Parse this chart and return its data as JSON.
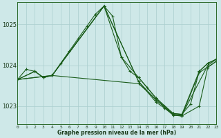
{
  "xlabel": "Graphe pression niveau de la mer (hPa)",
  "background_color": "#cee8e8",
  "grid_color": "#aacece",
  "line_color": "#1a5c1a",
  "ylim": [
    1022.55,
    1025.55
  ],
  "yticks": [
    1023,
    1024,
    1025
  ],
  "xlim": [
    0,
    23
  ],
  "xticks": [
    0,
    1,
    2,
    3,
    4,
    5,
    6,
    7,
    8,
    9,
    10,
    11,
    12,
    13,
    14,
    15,
    16,
    17,
    18,
    19,
    20,
    21,
    22,
    23
  ],
  "series": [
    {
      "x": [
        0,
        1,
        2,
        3,
        4,
        5,
        6,
        7,
        8,
        9,
        10,
        11,
        12,
        13,
        14,
        15,
        16,
        17,
        18,
        19,
        20,
        21,
        22,
        23
      ],
      "y": [
        1023.65,
        1023.9,
        1023.85,
        1023.7,
        1023.75,
        1024.05,
        1024.35,
        1024.65,
        1024.95,
        1025.25,
        1025.45,
        1025.2,
        1024.2,
        1023.85,
        1023.7,
        1023.45,
        1023.2,
        1023.0,
        1022.82,
        1022.8,
        1023.05,
        1023.85,
        1024.05,
        1024.15
      ]
    },
    {
      "x": [
        0,
        2,
        3,
        4,
        10,
        12,
        14,
        16,
        18,
        19,
        21,
        22,
        23
      ],
      "y": [
        1023.65,
        1023.85,
        1023.7,
        1023.75,
        1025.45,
        1024.2,
        1023.7,
        1023.2,
        1022.82,
        1022.8,
        1023.85,
        1024.05,
        1024.15
      ]
    },
    {
      "x": [
        0,
        2,
        3,
        4,
        10,
        14,
        16,
        18,
        19,
        22,
        23
      ],
      "y": [
        1023.65,
        1023.85,
        1023.7,
        1023.75,
        1025.45,
        1023.6,
        1023.15,
        1022.8,
        1022.78,
        1024.0,
        1024.15
      ]
    },
    {
      "x": [
        0,
        4,
        10,
        14,
        16,
        17,
        18,
        19,
        21,
        22,
        23
      ],
      "y": [
        1023.65,
        1023.75,
        1025.45,
        1023.6,
        1023.1,
        1022.95,
        1022.78,
        1022.76,
        1023.0,
        1023.95,
        1024.1
      ]
    },
    {
      "x": [
        0,
        4,
        14,
        18,
        19,
        21,
        23
      ],
      "y": [
        1023.65,
        1023.75,
        1023.55,
        1022.78,
        1022.76,
        1023.82,
        1024.1
      ]
    }
  ]
}
